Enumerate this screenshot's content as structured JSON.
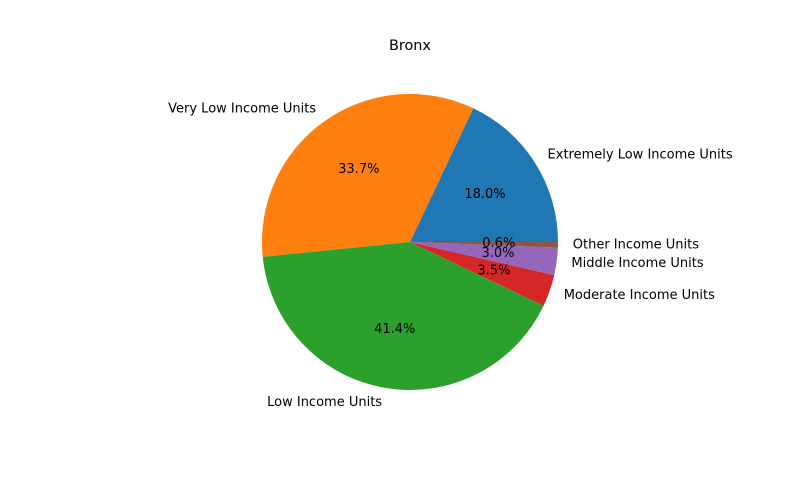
{
  "chart_data": {
    "type": "pie",
    "title": "Bronx",
    "start_angle_deg": 0,
    "direction": "counterclockwise",
    "legend": "none",
    "slices": [
      {
        "label": "Extremely Low Income Units",
        "pct_label": "18.0%",
        "value": 18.0,
        "color": "#1f77b4"
      },
      {
        "label": "Very Low Income Units",
        "pct_label": "33.7%",
        "value": 33.7,
        "color": "#ff7f0e"
      },
      {
        "label": "Low Income Units",
        "pct_label": "41.4%",
        "value": 41.4,
        "color": "#2ca02c"
      },
      {
        "label": "Moderate Income Units",
        "pct_label": "3.5%",
        "value": 3.5,
        "color": "#d62728"
      },
      {
        "label": "Middle Income Units",
        "pct_label": "3.0%",
        "value": 3.0,
        "color": "#9467bd"
      },
      {
        "label": "Other Income Units",
        "pct_label": "0.6%",
        "value": 0.6,
        "color": "#8c564b"
      }
    ]
  }
}
